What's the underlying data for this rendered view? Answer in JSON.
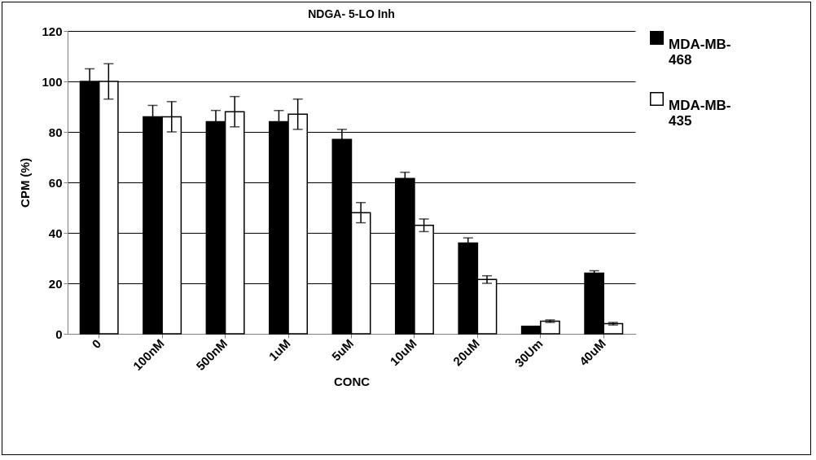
{
  "chart_data": {
    "type": "bar",
    "title": "NDGA- 5-LO Inh",
    "xlabel": "CONC",
    "ylabel": "CPM (%)",
    "categories": [
      "0",
      "100nM",
      "500nM",
      "1uM",
      "5uM",
      "10uM",
      "20uM",
      "30Um",
      "40uM"
    ],
    "series": [
      {
        "name": "MDA-MB-468",
        "color": "#000000",
        "values": [
          100,
          86,
          84,
          84,
          77,
          61.5,
          36,
          3,
          24
        ],
        "errors": [
          5,
          4.5,
          4.5,
          4.5,
          4,
          2.5,
          2,
          null,
          1
        ]
      },
      {
        "name": "MDA-MB-435",
        "color": "#ffffff",
        "values": [
          100,
          86,
          88,
          87,
          48,
          43,
          21.5,
          5,
          4
        ],
        "errors": [
          7,
          6,
          6,
          6,
          4,
          2.5,
          1.5,
          0.5,
          0.5
        ]
      }
    ],
    "ylim": [
      0,
      120
    ],
    "yticks": [
      0,
      20,
      40,
      60,
      80,
      100,
      120
    ],
    "grid": "y",
    "legend": "right"
  }
}
